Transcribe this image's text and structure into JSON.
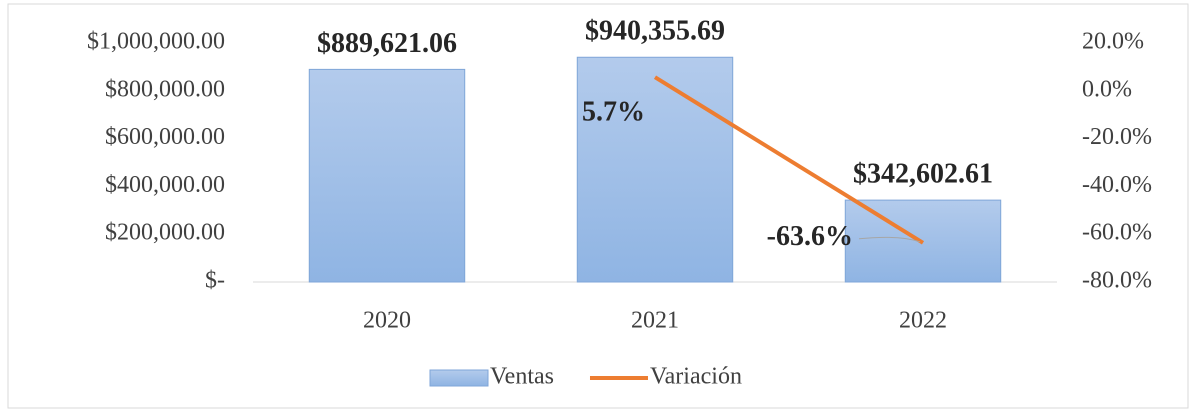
{
  "chart_data": {
    "type": "bar",
    "categories": [
      "2020",
      "2021",
      "2022"
    ],
    "series": [
      {
        "name": "Ventas",
        "color": "#8fb4e3",
        "values": [
          889621.06,
          940355.69,
          342602.61
        ],
        "value_labels": [
          "$889,621.06",
          "$940,355.69",
          "$342,602.61"
        ]
      },
      {
        "name": "Variación",
        "type": "line",
        "axis": "y2",
        "color": "#ed7d31",
        "values": [
          null,
          5.7,
          -63.6
        ],
        "value_labels": [
          null,
          "5.7%",
          "-63.6%"
        ]
      }
    ],
    "ylim": [
      0,
      1000000
    ],
    "yticks": [
      {
        "value": 0,
        "label": "$-"
      },
      {
        "value": 200000,
        "label": "$200,000.00"
      },
      {
        "value": 400000,
        "label": "$400,000.00"
      },
      {
        "value": 600000,
        "label": "$600,000.00"
      },
      {
        "value": 800000,
        "label": "$800,000.00"
      },
      {
        "value": 1000000,
        "label": "$1,000,000.00"
      }
    ],
    "y2lim": [
      -80,
      20
    ],
    "y2ticks": [
      {
        "value": -80,
        "label": "-80.0%"
      },
      {
        "value": -60,
        "label": "-60.0%"
      },
      {
        "value": -40,
        "label": "-40.0%"
      },
      {
        "value": -20,
        "label": "-20.0%"
      },
      {
        "value": 0,
        "label": "0.0%"
      },
      {
        "value": 20,
        "label": "20.0%"
      }
    ],
    "legend": "bottom"
  }
}
